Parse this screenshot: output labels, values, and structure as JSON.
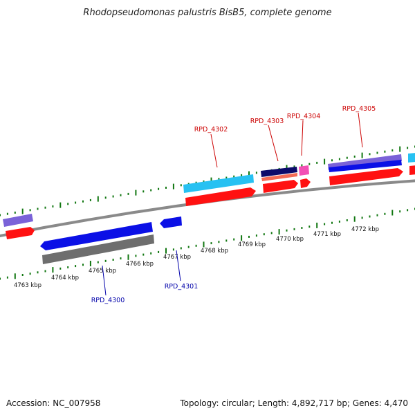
{
  "title": "Rhodopseudomonas palustris BisB5, complete genome",
  "footer": {
    "accession": "Accession: NC_007958",
    "summary": "Topology: circular; Length: 4,892,717 bp; Genes: 4,470"
  },
  "scale": {
    "labels": [
      "4763 kbp",
      "4764 kbp",
      "4765 kbp",
      "4766 kbp",
      "4767 kbp",
      "4768 kbp",
      "4769 kbp",
      "4770 kbp",
      "4771 kbp",
      "4772 kbp"
    ]
  },
  "gene_labels": {
    "forward": [
      "RPD_4302",
      "RPD_4303",
      "RPD_4304",
      "RPD_4305"
    ],
    "reverse": [
      "RPD_4300",
      "RPD_4301"
    ]
  },
  "colors": {
    "forward_label": "#cc0000",
    "reverse_label": "#0000aa",
    "backbone": "#8a8a8a",
    "ticks": "#117711",
    "cds_red": "#ff1111",
    "blue": "#0b10e6",
    "cyan": "#27c1f2",
    "gray": "#6e6e6e",
    "purple": "#7a62d8",
    "navy": "#0b0b6a",
    "salmon": "#f36b55",
    "pink": "#f24fb5"
  }
}
